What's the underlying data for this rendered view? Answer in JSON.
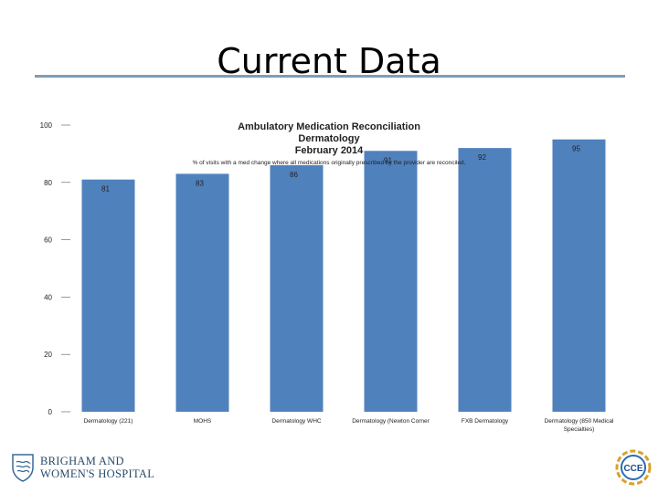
{
  "slide": {
    "title": "Current Data"
  },
  "chart_data": {
    "type": "bar",
    "title_lines": [
      "Ambulatory Medication Reconciliation",
      "Dermatology",
      "February 2014"
    ],
    "subtitle": "% of visits with a med change where all medications originally prescribed by the provider are reconciled.",
    "categories": [
      "Dermatology (221)",
      "MOHS",
      "Dermatology WHC",
      "Dermatology (Newton Corner",
      "FXB Dermatology",
      "Dermatology (850 Medical Specialties)"
    ],
    "values": [
      81,
      83,
      86,
      91,
      92,
      95
    ],
    "data_labels": [
      "81",
      "83",
      "86",
      "91",
      "92",
      "95"
    ],
    "ylim": [
      0,
      100
    ],
    "yticks": [
      "0",
      "20",
      "40",
      "60",
      "80",
      "100"
    ],
    "grid": false,
    "legend": "none",
    "bar_color": "#4f81bd"
  },
  "logos": {
    "left": "BRIGHAM AND WOMEN'S HOSPITAL",
    "right": "CCE"
  }
}
